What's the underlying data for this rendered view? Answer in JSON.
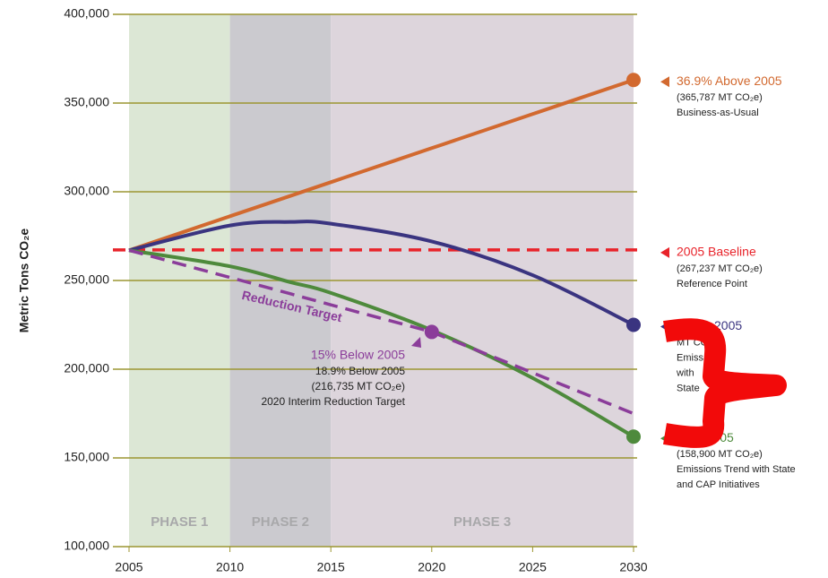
{
  "chart_data": {
    "type": "line",
    "y_label": "Metric Tons CO₂e",
    "x": [
      2005,
      2010,
      2013,
      2015,
      2020,
      2025,
      2030
    ],
    "xlim": [
      2005,
      2030
    ],
    "xticks": [
      2005,
      2010,
      2015,
      2020,
      2025,
      2030
    ],
    "ylim": [
      100000,
      400000
    ],
    "yticks": [
      {
        "value": 100000,
        "label": "100,000"
      },
      {
        "value": 150000,
        "label": "150,000"
      },
      {
        "value": 200000,
        "label": "200,000"
      },
      {
        "value": 250000,
        "label": "250,000"
      },
      {
        "value": 300000,
        "label": "300,000"
      },
      {
        "value": 350000,
        "label": "350,000"
      },
      {
        "value": 400000,
        "label": "400,000"
      }
    ],
    "grid": true,
    "phases": [
      {
        "label": "PHASE 1",
        "start": 2005,
        "end": 2010,
        "color": "#dce7d5"
      },
      {
        "label": "PHASE 2",
        "start": 2010,
        "end": 2015,
        "color": "#cbcacf"
      },
      {
        "label": "PHASE 3",
        "start": 2015,
        "end": 2030,
        "color": "#ddd5dc"
      }
    ],
    "baseline": {
      "value": 267237,
      "color": "#e8232a",
      "name": "2005 Baseline",
      "notes": [
        "(267,237 MT CO₂e)",
        "Reference Point"
      ]
    },
    "series": [
      {
        "name": "36.9% Above 2005",
        "notes": [
          "(365,787 MT CO₂e)",
          "Business-as-Usual"
        ],
        "color": "#d2692f",
        "dashed": false,
        "marker_at": 2030,
        "values": [
          267000,
          286200,
          297700,
          305400,
          324600,
          343800,
          363000
        ]
      },
      {
        "name": "Below 2005",
        "notes": [
          "MT CO₂e)",
          "Emiss",
          "with",
          "State"
        ],
        "color": "#3a3480",
        "dashed": false,
        "marker_at": 2030,
        "values": [
          267000,
          281000,
          283000,
          282000,
          272000,
          253000,
          225000
        ]
      },
      {
        "name": "elow 2005",
        "notes": [
          "(158,900 MT CO₂e)",
          "Emissions Trend with State",
          "and CAP Initiatives"
        ],
        "color": "#4e8a3c",
        "dashed": false,
        "marker_at": 2030,
        "values": [
          267000,
          258000,
          249000,
          243000,
          222000,
          195000,
          162000
        ]
      },
      {
        "name": "Reduction Target",
        "color": "#8b3d9a",
        "dashed": true,
        "marker_at": 2020,
        "values": [
          267000,
          251700,
          242500,
          236300,
          221000,
          198000,
          175000
        ]
      }
    ],
    "annotations": {
      "title": "15% Below 2005",
      "lines": [
        "18.9% Below 2005",
        "(216,735 MT CO₂e)",
        "2020 Interim Reduction Target"
      ]
    }
  }
}
